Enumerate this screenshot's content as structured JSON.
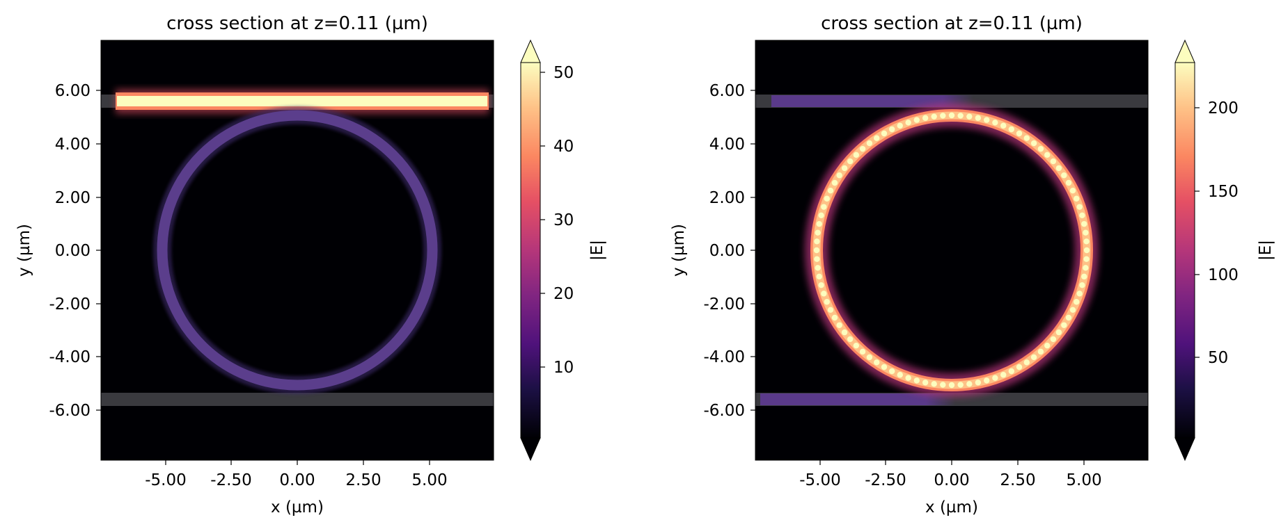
{
  "chart_data": [
    {
      "type": "heatmap",
      "title": "cross section at z=0.11 (µm)",
      "xlabel": "x (µm)",
      "ylabel": "y (µm)",
      "xlim": [
        -7.4,
        7.4
      ],
      "ylim": [
        -7.9,
        7.9
      ],
      "x_ticks": [
        "-5.00",
        "-2.50",
        "0.00",
        "2.50",
        "5.00"
      ],
      "x_tick_values": [
        -5.0,
        -2.5,
        0.0,
        2.5,
        5.0
      ],
      "y_ticks": [
        "6.00",
        "4.00",
        "2.00",
        "0.00",
        "-2.00",
        "-4.00",
        "-6.00"
      ],
      "y_tick_values": [
        6.0,
        4.0,
        2.0,
        0.0,
        -2.0,
        -4.0,
        -6.0
      ],
      "colorbar": {
        "label": "|E|",
        "colormap": "magma",
        "range": [
          0,
          53
        ],
        "ticks": [
          "10",
          "20",
          "30",
          "40",
          "50"
        ],
        "tick_values": [
          10,
          20,
          30,
          40,
          50
        ],
        "extend": "both"
      },
      "structures": {
        "ring_center": [
          0.0,
          0.0
        ],
        "ring_radius": 5.0,
        "ring_width": 0.45,
        "waveguide_width": 0.5,
        "waveguide_y": [
          5.6,
          -5.6
        ],
        "waveguide_x": [
          -7.4,
          7.4
        ]
      },
      "field": {
        "top_waveguide": {
          "x": [
            -6.8,
            7.0
          ],
          "value": 53
        },
        "ring": {
          "value": 15
        },
        "bottom_waveguide": {
          "value": 0
        }
      }
    },
    {
      "type": "heatmap",
      "title": "cross section at z=0.11 (µm)",
      "xlabel": "x (µm)",
      "ylabel": "y (µm)",
      "xlim": [
        -7.4,
        7.4
      ],
      "ylim": [
        -7.9,
        7.9
      ],
      "x_ticks": [
        "-5.00",
        "-2.50",
        "0.00",
        "2.50",
        "5.00"
      ],
      "x_tick_values": [
        -5.0,
        -2.5,
        0.0,
        2.5,
        5.0
      ],
      "y_ticks": [
        "6.00",
        "4.00",
        "2.00",
        "0.00",
        "-2.00",
        "-4.00",
        "-6.00"
      ],
      "y_tick_values": [
        6.0,
        4.0,
        2.0,
        0.0,
        -2.0,
        -4.0,
        -6.0
      ],
      "colorbar": {
        "label": "|E|",
        "colormap": "magma",
        "range": [
          0,
          230
        ],
        "ticks": [
          "50",
          "100",
          "150",
          "200"
        ],
        "tick_values": [
          50,
          100,
          150,
          200
        ],
        "extend": "both"
      },
      "structures": {
        "ring_center": [
          0.0,
          0.0
        ],
        "ring_radius": 5.0,
        "ring_width": 0.45,
        "waveguide_width": 0.5,
        "waveguide_y": [
          5.6,
          -5.6
        ],
        "waveguide_x": [
          -7.4,
          7.4
        ]
      },
      "field": {
        "ring": {
          "value": 225,
          "lobes": 96
        },
        "top_waveguide": {
          "x": [
            -6.8,
            0.5
          ],
          "value": 60
        },
        "bottom_waveguide": {
          "x": [
            -7.0,
            -0.5
          ],
          "value": 60
        }
      }
    }
  ]
}
